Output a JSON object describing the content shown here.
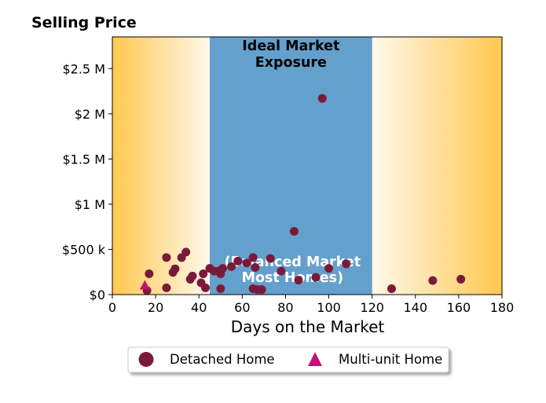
{
  "chart_data": {
    "type": "scatter",
    "title": "Selling Price",
    "xlabel": "Days on the Market",
    "ylabel": "",
    "xlim": [
      0,
      180
    ],
    "ylim": [
      0,
      2850000
    ],
    "x_ticks": [
      {
        "value": 0,
        "label": "0"
      },
      {
        "value": 20,
        "label": "20"
      },
      {
        "value": 40,
        "label": "40"
      },
      {
        "value": 60,
        "label": "60"
      },
      {
        "value": 80,
        "label": "80"
      },
      {
        "value": 100,
        "label": "100"
      },
      {
        "value": 120,
        "label": "120"
      },
      {
        "value": 140,
        "label": "140"
      },
      {
        "value": 160,
        "label": "160"
      },
      {
        "value": 180,
        "label": "180"
      }
    ],
    "y_ticks": [
      {
        "value": 0,
        "label": "$0"
      },
      {
        "value": 500000,
        "label": "$500 k"
      },
      {
        "value": 1000000,
        "label": "$1 M"
      },
      {
        "value": 1500000,
        "label": "$1.5 M"
      },
      {
        "value": 2000000,
        "label": "$2 M"
      },
      {
        "value": 2500000,
        "label": "$2.5 M"
      }
    ],
    "grid": false,
    "legend_position": "bottom-center",
    "band": {
      "x_range": [
        45,
        120
      ],
      "color": "#64a0cc",
      "label_top": [
        "Ideal Market",
        "Exposure"
      ],
      "label_bottom": [
        "(Balanced Market",
        "Most Homes)"
      ]
    },
    "gradient_colors": {
      "outer": "#ffc850",
      "inner": "#fff8ea"
    },
    "series": [
      {
        "name": "Detached Home",
        "marker": "circle",
        "color": "#7a1a3a",
        "points": [
          {
            "x": 16,
            "y": 45000
          },
          {
            "x": 17,
            "y": 230000
          },
          {
            "x": 25,
            "y": 410000
          },
          {
            "x": 25,
            "y": 75000
          },
          {
            "x": 28,
            "y": 245000
          },
          {
            "x": 29,
            "y": 285000
          },
          {
            "x": 32,
            "y": 410000
          },
          {
            "x": 34,
            "y": 470000
          },
          {
            "x": 36,
            "y": 170000
          },
          {
            "x": 37,
            "y": 205000
          },
          {
            "x": 41,
            "y": 130000
          },
          {
            "x": 42,
            "y": 230000
          },
          {
            "x": 43,
            "y": 75000
          },
          {
            "x": 45,
            "y": 290000
          },
          {
            "x": 47,
            "y": 260000
          },
          {
            "x": 49,
            "y": 260000
          },
          {
            "x": 50,
            "y": 230000
          },
          {
            "x": 50,
            "y": 65000
          },
          {
            "x": 51,
            "y": 290000
          },
          {
            "x": 55,
            "y": 310000
          },
          {
            "x": 58,
            "y": 370000
          },
          {
            "x": 62,
            "y": 350000
          },
          {
            "x": 65,
            "y": 410000
          },
          {
            "x": 65,
            "y": 65000
          },
          {
            "x": 66,
            "y": 300000
          },
          {
            "x": 67,
            "y": 55000
          },
          {
            "x": 69,
            "y": 55000
          },
          {
            "x": 73,
            "y": 400000
          },
          {
            "x": 78,
            "y": 260000
          },
          {
            "x": 84,
            "y": 700000
          },
          {
            "x": 86,
            "y": 160000
          },
          {
            "x": 94,
            "y": 190000
          },
          {
            "x": 97,
            "y": 2170000
          },
          {
            "x": 100,
            "y": 290000
          },
          {
            "x": 108,
            "y": 340000
          },
          {
            "x": 129,
            "y": 65000
          },
          {
            "x": 148,
            "y": 155000
          },
          {
            "x": 161,
            "y": 170000
          }
        ]
      },
      {
        "name": "Multi-unit Home",
        "marker": "triangle",
        "color": "#c0127a",
        "points": [
          {
            "x": 15,
            "y": 100000
          }
        ]
      }
    ]
  }
}
